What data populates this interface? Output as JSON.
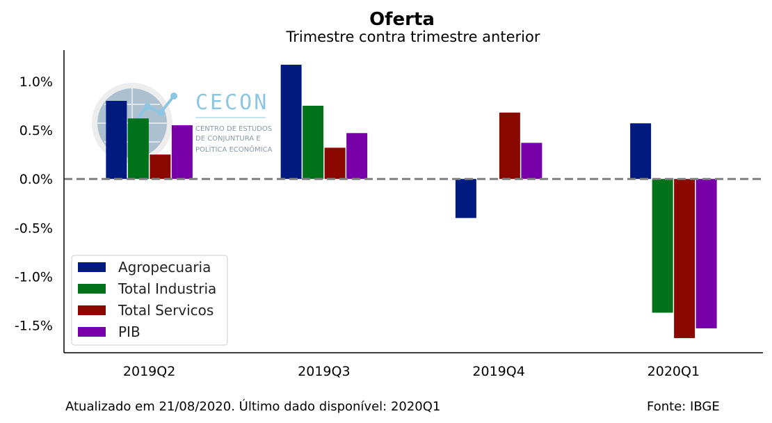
{
  "chart_data": {
    "type": "bar",
    "title": "Oferta",
    "subtitle": "Trimestre contra trimestre anterior",
    "categories": [
      "2019Q2",
      "2019Q3",
      "2019Q4",
      "2020Q1"
    ],
    "series": [
      {
        "name": "Agropecuaria",
        "color": "#001a80",
        "values": [
          0.8,
          1.17,
          -0.4,
          0.57
        ]
      },
      {
        "name": "Total Industria",
        "color": "#00731a",
        "values": [
          0.62,
          0.75,
          0.0,
          -1.37
        ]
      },
      {
        "name": "Total Servicos",
        "color": "#8a0800",
        "values": [
          0.25,
          0.32,
          0.68,
          -1.63
        ]
      },
      {
        "name": "PIB",
        "color": "#7800a8",
        "values": [
          0.55,
          0.47,
          0.37,
          -1.53
        ]
      }
    ],
    "y_ticks": [
      "1.0%",
      "0.5%",
      "0.0%",
      "-0.5%",
      "-1.0%",
      "-1.5%"
    ],
    "y_tick_values": [
      1.0,
      0.5,
      0.0,
      -0.5,
      -1.0,
      -1.5
    ],
    "ylim": [
      -1.78,
      1.32
    ],
    "zero_line_color": "#808080",
    "legend_position": "lower-left",
    "grid": false
  },
  "logo": {
    "name": "CECON",
    "line1": "CENTRO DE ESTUDOS",
    "line2": "DE CONJUNTURA E",
    "line3": "POLÍTICA ECONÔMICA",
    "color": "#7fc0e0"
  },
  "footer": {
    "updated": "Atualizado em 21/08/2020. Último dado disponível: 2020Q1",
    "source": "Fonte: IBGE"
  }
}
